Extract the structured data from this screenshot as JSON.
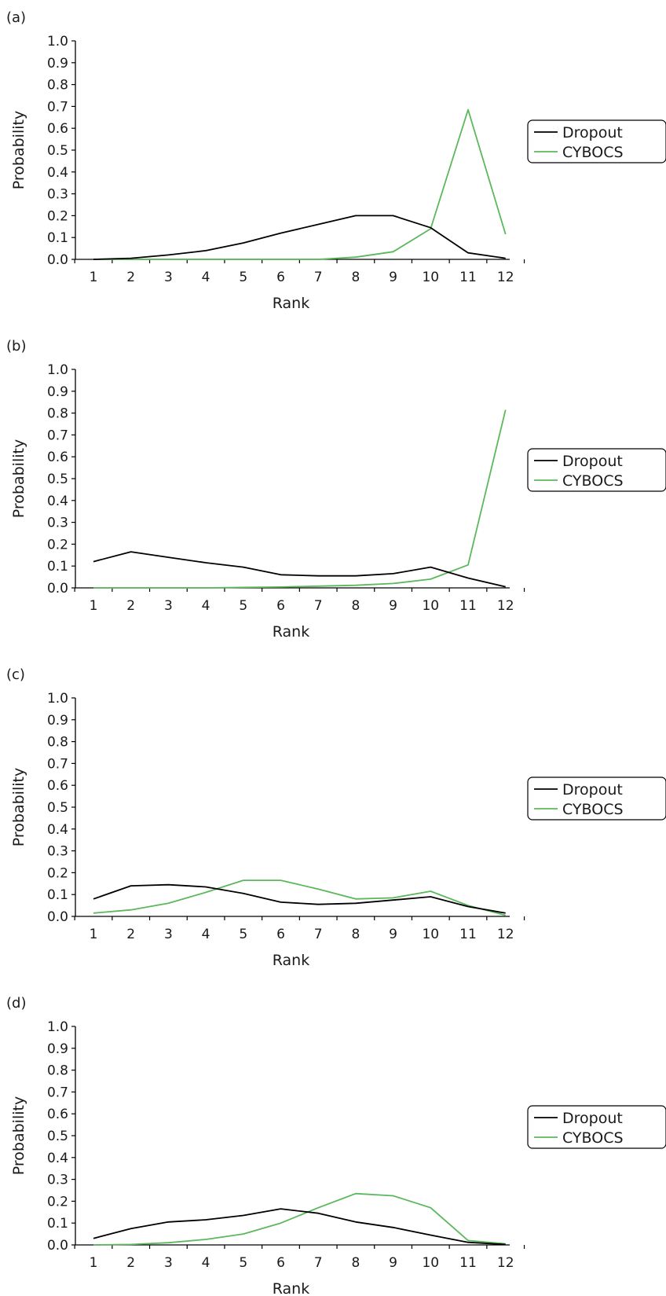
{
  "chart_data": [
    {
      "type": "line",
      "label": "(a)",
      "xlabel": "Rank",
      "ylabel": "Probability",
      "xlim": [
        1,
        12
      ],
      "ylim": [
        0,
        1
      ],
      "x": [
        1,
        2,
        3,
        4,
        5,
        6,
        7,
        8,
        9,
        10,
        11,
        12
      ],
      "xticks": [
        "1",
        "2",
        "3",
        "4",
        "5",
        "6",
        "7",
        "8",
        "9",
        "10",
        "11",
        "12"
      ],
      "yticks": [
        "0.0",
        "0.1",
        "0.2",
        "0.3",
        "0.4",
        "0.5",
        "0.6",
        "0.7",
        "0.8",
        "0.9",
        "1.0"
      ],
      "grid": false,
      "legend": "right",
      "series": [
        {
          "name": "Dropout",
          "color": "#000000",
          "values": [
            0.0,
            0.005,
            0.02,
            0.04,
            0.075,
            0.12,
            0.16,
            0.2,
            0.2,
            0.145,
            0.03,
            0.005
          ]
        },
        {
          "name": "CYBOCS",
          "color": "#5cb85c",
          "values": [
            0.0,
            0.0,
            0.0,
            0.0,
            0.0,
            0.0,
            0.0,
            0.01,
            0.035,
            0.14,
            0.685,
            0.115
          ]
        }
      ]
    },
    {
      "type": "line",
      "label": "(b)",
      "xlabel": "Rank",
      "ylabel": "Probability",
      "xlim": [
        1,
        12
      ],
      "ylim": [
        0,
        1
      ],
      "x": [
        1,
        2,
        3,
        4,
        5,
        6,
        7,
        8,
        9,
        10,
        11,
        12
      ],
      "xticks": [
        "1",
        "2",
        "3",
        "4",
        "5",
        "6",
        "7",
        "8",
        "9",
        "10",
        "11",
        "12"
      ],
      "yticks": [
        "0.0",
        "0.1",
        "0.2",
        "0.3",
        "0.4",
        "0.5",
        "0.6",
        "0.7",
        "0.8",
        "0.9",
        "1.0"
      ],
      "grid": false,
      "legend": "right",
      "series": [
        {
          "name": "Dropout",
          "color": "#000000",
          "values": [
            0.12,
            0.165,
            0.14,
            0.115,
            0.095,
            0.06,
            0.055,
            0.055,
            0.065,
            0.095,
            0.045,
            0.005
          ]
        },
        {
          "name": "CYBOCS",
          "color": "#5cb85c",
          "values": [
            0.0,
            0.0,
            0.0,
            0.0,
            0.002,
            0.004,
            0.008,
            0.012,
            0.02,
            0.04,
            0.105,
            0.815
          ]
        }
      ]
    },
    {
      "type": "line",
      "label": "(c)",
      "xlabel": "Rank",
      "ylabel": "Probability",
      "xlim": [
        1,
        12
      ],
      "ylim": [
        0,
        1
      ],
      "x": [
        1,
        2,
        3,
        4,
        5,
        6,
        7,
        8,
        9,
        10,
        11,
        12
      ],
      "xticks": [
        "1",
        "2",
        "3",
        "4",
        "5",
        "6",
        "7",
        "8",
        "9",
        "10",
        "11",
        "12"
      ],
      "yticks": [
        "0.0",
        "0.1",
        "0.2",
        "0.3",
        "0.4",
        "0.5",
        "0.6",
        "0.7",
        "0.8",
        "0.9",
        "1.0"
      ],
      "grid": false,
      "legend": "right",
      "series": [
        {
          "name": "Dropout",
          "color": "#000000",
          "values": [
            0.08,
            0.14,
            0.145,
            0.135,
            0.105,
            0.065,
            0.055,
            0.06,
            0.075,
            0.09,
            0.045,
            0.015
          ]
        },
        {
          "name": "CYBOCS",
          "color": "#5cb85c",
          "values": [
            0.015,
            0.03,
            0.06,
            0.11,
            0.165,
            0.165,
            0.125,
            0.08,
            0.085,
            0.115,
            0.05,
            0.005
          ]
        }
      ]
    },
    {
      "type": "line",
      "label": "(d)",
      "xlabel": "Rank",
      "ylabel": "Probability",
      "xlim": [
        1,
        12
      ],
      "ylim": [
        0,
        1
      ],
      "x": [
        1,
        2,
        3,
        4,
        5,
        6,
        7,
        8,
        9,
        10,
        11,
        12
      ],
      "xticks": [
        "1",
        "2",
        "3",
        "4",
        "5",
        "6",
        "7",
        "8",
        "9",
        "10",
        "11",
        "12"
      ],
      "yticks": [
        "0.0",
        "0.1",
        "0.2",
        "0.3",
        "0.4",
        "0.5",
        "0.6",
        "0.7",
        "0.8",
        "0.9",
        "1.0"
      ],
      "grid": false,
      "legend": "right",
      "series": [
        {
          "name": "Dropout",
          "color": "#000000",
          "values": [
            0.03,
            0.075,
            0.105,
            0.115,
            0.135,
            0.165,
            0.145,
            0.105,
            0.08,
            0.045,
            0.012,
            0.002
          ]
        },
        {
          "name": "CYBOCS",
          "color": "#5cb85c",
          "values": [
            0.0,
            0.002,
            0.01,
            0.025,
            0.05,
            0.1,
            0.17,
            0.235,
            0.225,
            0.17,
            0.02,
            0.005
          ]
        }
      ]
    }
  ]
}
